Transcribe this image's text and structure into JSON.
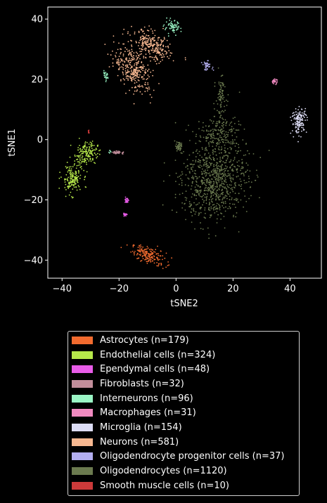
{
  "chart_data": {
    "type": "scatter",
    "title": "",
    "xlabel": "tSNE2",
    "ylabel": "tSNE1",
    "xlim": [
      -45,
      51
    ],
    "ylim": [
      -46,
      44
    ],
    "xticks": [
      -40,
      -20,
      0,
      20,
      40
    ],
    "xtick_labels": [
      "−40",
      "−20",
      "0",
      "20",
      "40"
    ],
    "yticks": [
      40,
      20,
      0,
      -20,
      -40
    ],
    "ytick_labels": [
      "40",
      "20",
      "0",
      "−20",
      "−40"
    ],
    "grid": false,
    "legend_position": "below plot",
    "series": [
      {
        "name": "Astrocytes (n=179)",
        "color": "#f26b2f",
        "n": 179,
        "clusters": [
          {
            "cx": -9.5,
            "cy": -38.5,
            "sx": 3.0,
            "sy": 1.6,
            "rho": -0.55
          }
        ]
      },
      {
        "name": "Endothelial cells (n=324)",
        "color": "#b6e84a",
        "n": 324,
        "clusters": [
          {
            "cx": -31.5,
            "cy": -4.5,
            "sx": 2.0,
            "sy": 1.9,
            "rho": 0.1,
            "w": 0.5
          },
          {
            "cx": -36.5,
            "cy": -13.0,
            "sx": 1.8,
            "sy": 2.4,
            "rho": 0.0,
            "w": 0.5
          }
        ]
      },
      {
        "name": "Ependymal cells (n=48)",
        "color": "#e85ce8",
        "n": 48,
        "clusters": [
          {
            "cx": -17.3,
            "cy": -20.2,
            "sx": 0.25,
            "sy": 0.5,
            "rho": 0,
            "w": 0.55
          },
          {
            "cx": -17.8,
            "cy": -24.8,
            "sx": 0.35,
            "sy": 0.2,
            "rho": 0,
            "w": 0.45
          }
        ]
      },
      {
        "name": "Fibroblasts (n=32)",
        "color": "#c28e9b",
        "n": 32,
        "clusters": [
          {
            "cx": -20.2,
            "cy": -4.3,
            "sx": 1.1,
            "sy": 0.25,
            "rho": 0
          }
        ]
      },
      {
        "name": "Interneurons (n=96)",
        "color": "#9af5c5",
        "n": 96,
        "clusters": [
          {
            "cx": -1.2,
            "cy": 37.2,
            "sx": 1.4,
            "sy": 1.1,
            "rho": 0,
            "w": 0.7
          },
          {
            "cx": -24.8,
            "cy": 20.8,
            "sx": 0.5,
            "sy": 0.8,
            "rho": 0,
            "w": 0.25
          },
          {
            "cx": -23.2,
            "cy": -4.0,
            "sx": 0.3,
            "sy": 0.2,
            "rho": 0,
            "w": 0.05
          }
        ]
      },
      {
        "name": "Macrophages (n=31)",
        "color": "#f08ac0",
        "n": 31,
        "clusters": [
          {
            "cx": 34.5,
            "cy": 19.3,
            "sx": 0.5,
            "sy": 0.4,
            "rho": 0
          }
        ]
      },
      {
        "name": "Microglia (n=154)",
        "color": "#dcdcf5",
        "n": 154,
        "clusters": [
          {
            "cx": 43.3,
            "cy": 6.3,
            "sx": 1.3,
            "sy": 2.1,
            "rho": 0.1
          }
        ]
      },
      {
        "name": "Neurons (n=581)",
        "color": "#f7b891",
        "n": 581,
        "clusters": [
          {
            "cx": -15.0,
            "cy": 23.5,
            "sx": 3.3,
            "sy": 3.8,
            "rho": -0.45,
            "w": 0.55
          },
          {
            "cx": -8.5,
            "cy": 31.0,
            "sx": 3.3,
            "sy": 2.6,
            "rho": -0.5,
            "w": 0.45
          }
        ]
      },
      {
        "name": "Oligodendrocyte progenitor cells (n=37)",
        "color": "#b3aef0",
        "n": 37,
        "clusters": [
          {
            "cx": 11.0,
            "cy": 24.5,
            "sx": 0.9,
            "sy": 0.7,
            "rho": 0
          }
        ]
      },
      {
        "name": "Oligodendrocytes (n=1120)",
        "color": "#6b7a4f",
        "n": 1120,
        "clusters": [
          {
            "cx": 13.5,
            "cy": -13.5,
            "sx": 5.8,
            "sy": 6.5,
            "rho": 0.1,
            "w": 0.72
          },
          {
            "cx": 15.0,
            "cy": 2.0,
            "sx": 3.8,
            "sy": 3.2,
            "rho": 0.0,
            "w": 0.16
          },
          {
            "cx": 15.8,
            "cy": 13.5,
            "sx": 0.9,
            "sy": 4.0,
            "rho": 0.0,
            "w": 0.08
          },
          {
            "cx": 1.0,
            "cy": -2.5,
            "sx": 0.7,
            "sy": 0.9,
            "rho": 0.0,
            "w": 0.04
          }
        ]
      },
      {
        "name": "Smooth muscle cells (n=10)",
        "color": "#cc3a3a",
        "n": 10,
        "clusters": [
          {
            "cx": -30.7,
            "cy": 2.6,
            "sx": 0.1,
            "sy": 0.3,
            "rho": 0
          }
        ]
      }
    ]
  }
}
